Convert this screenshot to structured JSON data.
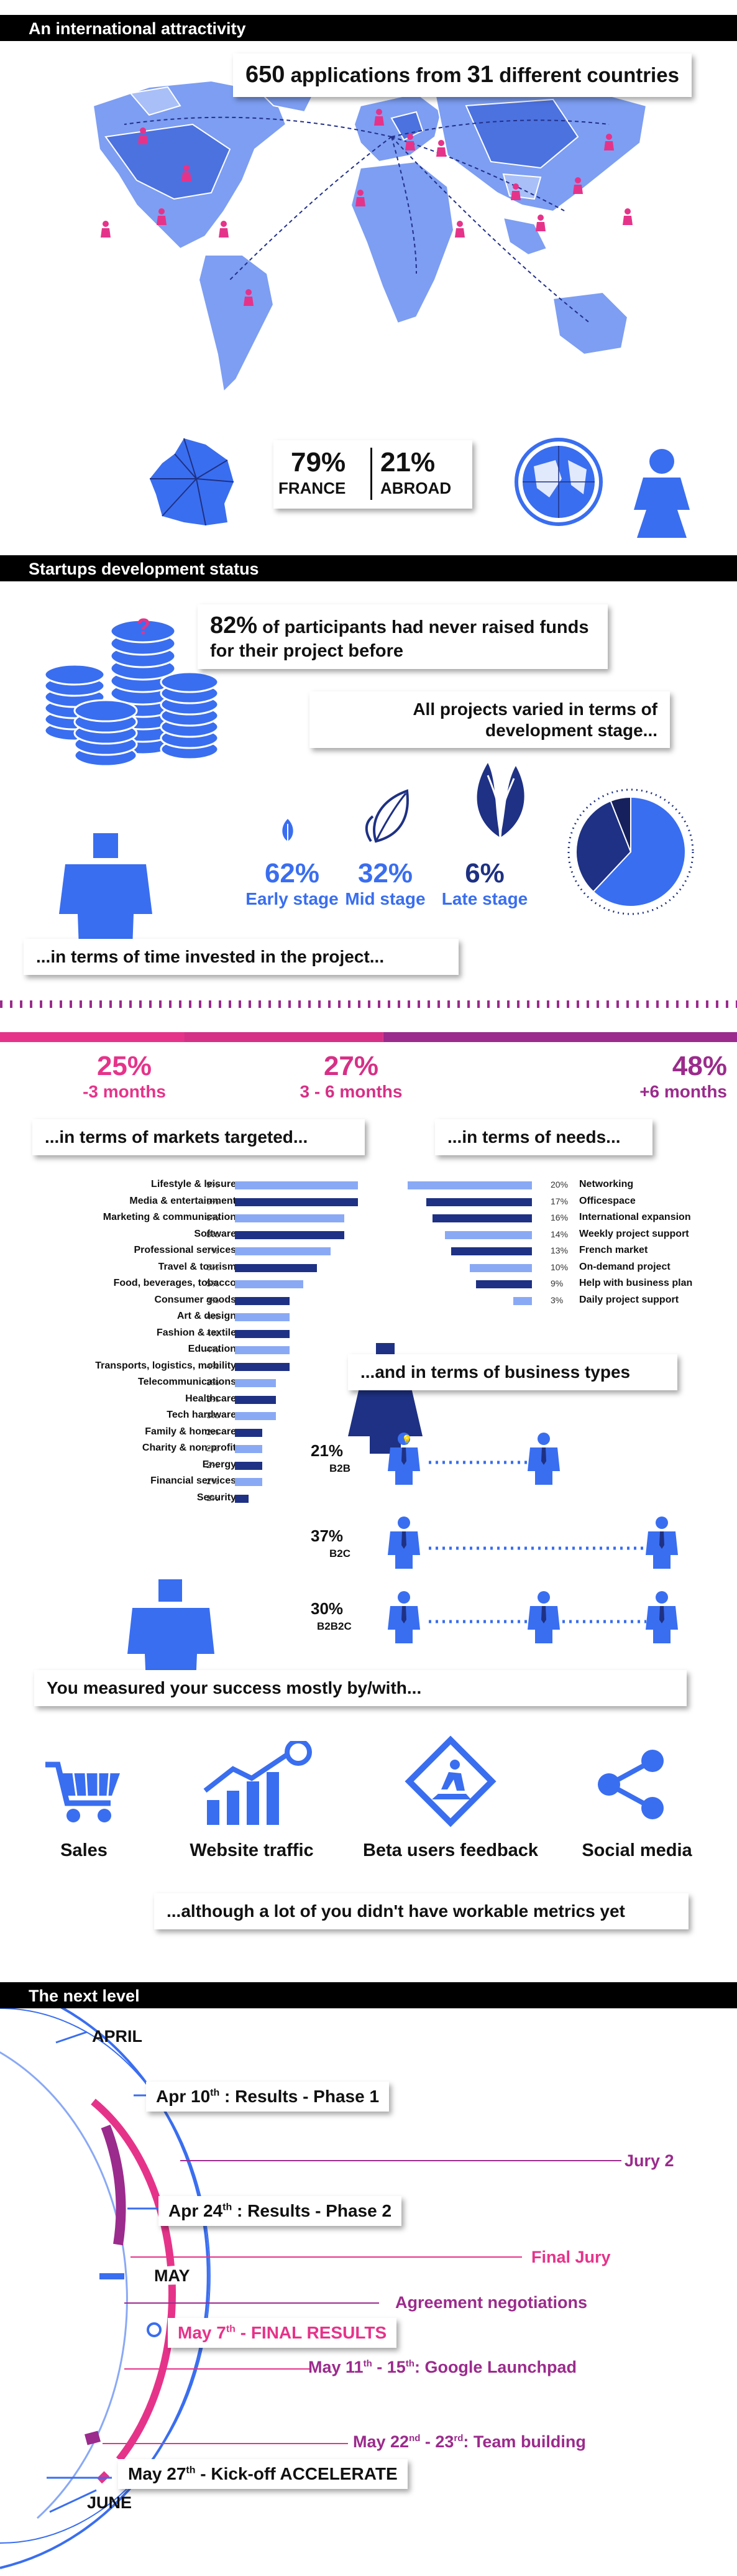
{
  "section1": {
    "header": "An international attractivity",
    "apps_count": "650",
    "apps_text_mid": " applications from ",
    "countries_count": "31",
    "countries_text": " different countries",
    "france_pct": "79%",
    "france_label": "FRANCE",
    "abroad_pct": "21%",
    "abroad_label": "ABROAD"
  },
  "section2": {
    "header": "Startups development status",
    "raised_pct": "82%",
    "raised_text": " of participants had never raised funds for their project before",
    "varied_text": "All projects varied in terms of development stage...",
    "stages": [
      {
        "pct": "62%",
        "label": "Early stage",
        "value": 62
      },
      {
        "pct": "32%",
        "label": "Mid stage",
        "value": 32
      },
      {
        "pct": "6%",
        "label": "Late stage",
        "value": 6
      }
    ],
    "time_text": "...in terms of time invested in the project...",
    "time": [
      {
        "pct": "25%",
        "label": "-3 months",
        "value": 25
      },
      {
        "pct": "27%",
        "label": "3 - 6 months",
        "value": 27
      },
      {
        "pct": "48%",
        "label": "+6 months",
        "value": 48
      }
    ],
    "markets_title": "...in terms of markets targeted...",
    "needs_title": "...in terms of needs...",
    "markets": [
      {
        "label": "Lifestyle & leisure",
        "pct": "9%",
        "value": 9,
        "shade": "light"
      },
      {
        "label": "Media & entertainment",
        "pct": "9%",
        "value": 9,
        "shade": "dark"
      },
      {
        "label": "Marketing & communication",
        "pct": "8%",
        "value": 8,
        "shade": "light"
      },
      {
        "label": "Software",
        "pct": "8%",
        "value": 8,
        "shade": "dark"
      },
      {
        "label": "Professional services",
        "pct": "7%",
        "value": 7,
        "shade": "light"
      },
      {
        "label": "Travel & tourism",
        "pct": "6%",
        "value": 6,
        "shade": "dark"
      },
      {
        "label": "Food, beverages, tobacco",
        "pct": "5%",
        "value": 5,
        "shade": "light"
      },
      {
        "label": "Consumer goods",
        "pct": "4%",
        "value": 4,
        "shade": "dark"
      },
      {
        "label": "Art & design",
        "pct": "4%",
        "value": 4,
        "shade": "light"
      },
      {
        "label": "Fashion & textile",
        "pct": "4%",
        "value": 4,
        "shade": "dark"
      },
      {
        "label": "Education",
        "pct": "4%",
        "value": 4,
        "shade": "light"
      },
      {
        "label": "Transports, logistics, mobility",
        "pct": "4%",
        "value": 4,
        "shade": "dark"
      },
      {
        "label": "Telecommunications",
        "pct": "3%",
        "value": 3,
        "shade": "light"
      },
      {
        "label": "Healthcare",
        "pct": "3%",
        "value": 3,
        "shade": "dark"
      },
      {
        "label": "Tech hardware",
        "pct": "3%",
        "value": 3,
        "shade": "light"
      },
      {
        "label": "Family & homecare",
        "pct": "2%",
        "value": 2,
        "shade": "dark"
      },
      {
        "label": "Charity & non-profit",
        "pct": "2%",
        "value": 2,
        "shade": "light"
      },
      {
        "label": "Energy",
        "pct": "2%",
        "value": 2,
        "shade": "dark"
      },
      {
        "label": "Financial services",
        "pct": "2%",
        "value": 2,
        "shade": "light"
      },
      {
        "label": "Security",
        "pct": "1%",
        "value": 1,
        "shade": "dark"
      }
    ],
    "needs": [
      {
        "label": "Networking",
        "pct": "20%",
        "value": 20,
        "shade": "light"
      },
      {
        "label": "Officespace",
        "pct": "17%",
        "value": 17,
        "shade": "dark"
      },
      {
        "label": "International expansion",
        "pct": "16%",
        "value": 16,
        "shade": "dark"
      },
      {
        "label": "Weekly project support",
        "pct": "14%",
        "value": 14,
        "shade": "light"
      },
      {
        "label": "French market",
        "pct": "13%",
        "value": 13,
        "shade": "dark"
      },
      {
        "label": "On-demand project",
        "pct": "10%",
        "value": 10,
        "shade": "light"
      },
      {
        "label": "Help with business plan",
        "pct": "9%",
        "value": 9,
        "shade": "dark"
      },
      {
        "label": "Daily project support",
        "pct": "3%",
        "value": 3,
        "shade": "light"
      }
    ],
    "business_title": "...and in terms of business types",
    "business": [
      {
        "pct": "21%",
        "label": "B2B"
      },
      {
        "pct": "37%",
        "label": "B2C"
      },
      {
        "pct": "30%",
        "label": "B2B2C"
      }
    ],
    "success_text": "You measured your success mostly by/with...",
    "metrics": [
      {
        "label": "Sales",
        "icon": "shopping-cart-icon"
      },
      {
        "label": "Website traffic",
        "icon": "growth-chart-icon"
      },
      {
        "label": "Beta users feedback",
        "icon": "road-work-sign-icon"
      },
      {
        "label": "Social media",
        "icon": "share-icon"
      }
    ],
    "metrics_note": "...although a lot of you didn't have workable metrics yet"
  },
  "section3": {
    "header": "The next level",
    "april": "APRIL",
    "may": "MAY",
    "june": "JUNE",
    "apr10_pre": "Apr 10",
    "apr10_sup": "th",
    "apr10_post": " : Results - Phase 1",
    "jury2": "Jury 2",
    "apr24_pre": "Apr 24",
    "apr24_sup": "th",
    "apr24_post": " : Results - Phase 2",
    "final_jury": "Final Jury",
    "agreement": "Agreement negotiations",
    "may7_pre": "May 7",
    "may7_sup": "th",
    "may7_post": " - FINAL RESULTS",
    "may11_a": "May 11",
    "may11_sup1": "th",
    "may11_b": " - 15",
    "may11_sup2": "th",
    "may11_c": ": Google Launchpad",
    "may22_a": "May 22",
    "may22_sup1": "nd",
    "may22_b": " - 23",
    "may22_sup2": "rd",
    "may22_c": ": Team building",
    "may27_pre": "May 27",
    "may27_sup": "th",
    "may27_post": " - Kick-off ACCELERATE"
  },
  "colors": {
    "blue": "#3a6ef0",
    "dark_blue": "#1e3184",
    "light_blue": "#8aa9f5",
    "pink": "#e6338a",
    "purple": "#9b2b8c"
  }
}
